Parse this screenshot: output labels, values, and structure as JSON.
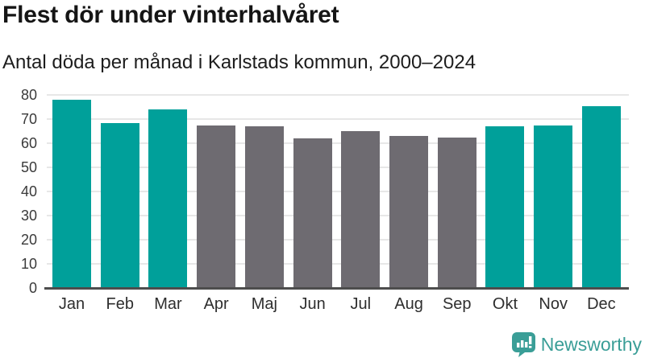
{
  "title": "Flest dör under vinterhalvåret",
  "subtitle": "Antal döda per månad i Karlstads kommun, 2000–2024",
  "chart_data": {
    "type": "bar",
    "title": "Flest dör under vinterhalvåret",
    "subtitle": "Antal döda per månad i Karlstads kommun, 2000–2024",
    "categories": [
      "Jan",
      "Feb",
      "Mar",
      "Apr",
      "Maj",
      "Jun",
      "Jul",
      "Aug",
      "Sep",
      "Okt",
      "Nov",
      "Dec"
    ],
    "values": [
      78,
      68.5,
      74,
      67.5,
      67,
      62,
      65,
      63,
      62.5,
      67,
      67.5,
      75.5
    ],
    "bar_groups": [
      "winter",
      "winter",
      "winter",
      "summer",
      "summer",
      "summer",
      "summer",
      "summer",
      "summer",
      "winter",
      "winter",
      "winter"
    ],
    "group_colors": {
      "winter": "#00a09a",
      "summer": "#6e6b71"
    },
    "xlabel": "",
    "ylabel": "",
    "ylim": [
      0,
      80
    ],
    "yticks": [
      0,
      10,
      20,
      30,
      40,
      50,
      60,
      70,
      80
    ],
    "grid": "horizontal-only",
    "legend": "none"
  },
  "colors": {
    "winter_bar": "#00a09a",
    "summer_bar": "#6e6b71",
    "gridline": "#e7e7e7",
    "axis_line": "#4d4d4d",
    "title_text": "#151515",
    "logo": "#3a9e97"
  },
  "branding": {
    "logo_text": "Newsworthy"
  }
}
